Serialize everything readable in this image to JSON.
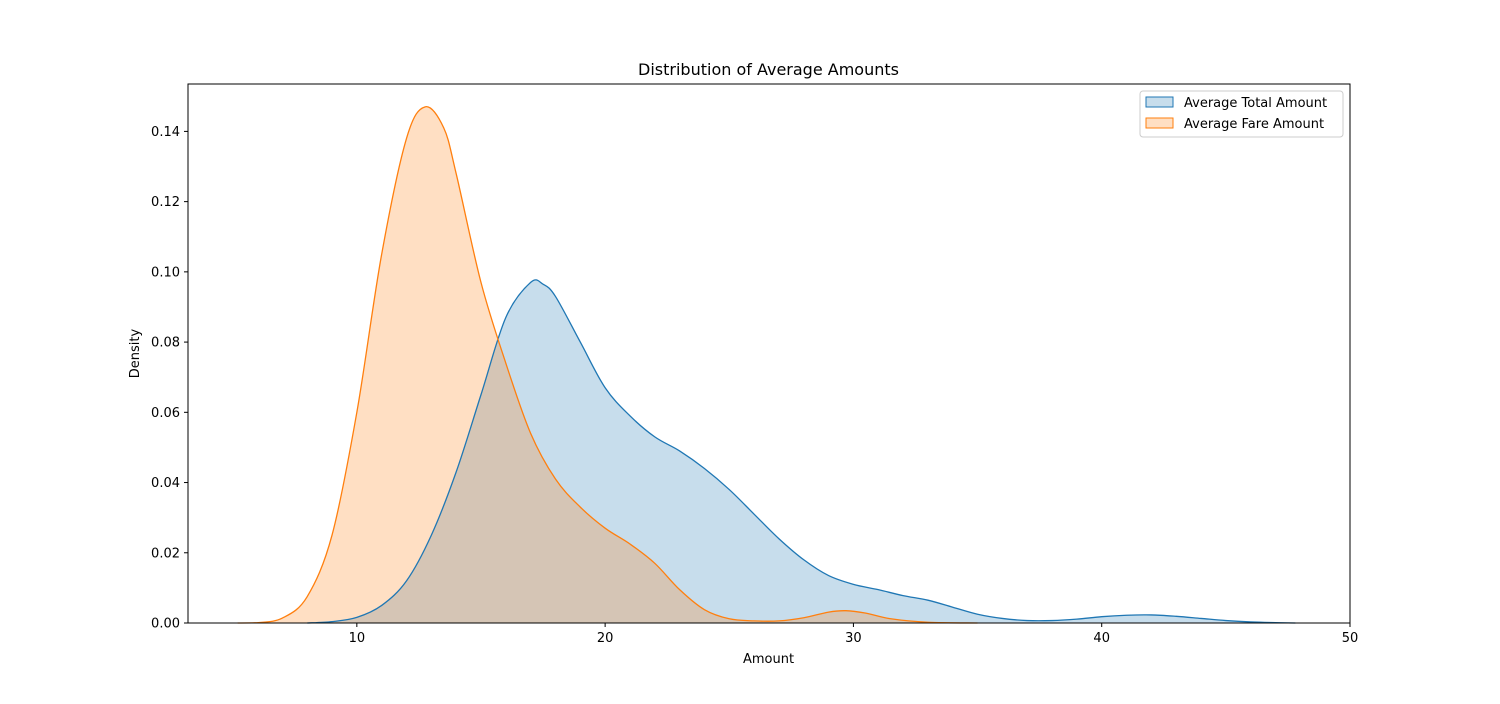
{
  "chart_data": {
    "type": "area",
    "title": "Distribution of Average Amounts",
    "xlabel": "Amount",
    "ylabel": "Density",
    "xlim": [
      3.2,
      50
    ],
    "ylim": [
      0,
      0.1535
    ],
    "x_ticks": [
      10,
      20,
      30,
      40,
      50
    ],
    "y_ticks": [
      0.0,
      0.02,
      0.04,
      0.06,
      0.08,
      0.1,
      0.12,
      0.14
    ],
    "y_tick_format": 2,
    "grid": false,
    "legend_position": "top-right",
    "series": [
      {
        "name": "Average Total Amount",
        "color": "#1f77b4",
        "fill_opacity": 0.25,
        "points": [
          [
            8,
            0.0
          ],
          [
            9,
            0.0004
          ],
          [
            10,
            0.0016
          ],
          [
            11,
            0.005
          ],
          [
            12,
            0.012
          ],
          [
            13,
            0.025
          ],
          [
            14,
            0.043
          ],
          [
            15,
            0.065
          ],
          [
            16,
            0.087
          ],
          [
            17,
            0.097
          ],
          [
            17.5,
            0.0965
          ],
          [
            18,
            0.093
          ],
          [
            19,
            0.08
          ],
          [
            20,
            0.067
          ],
          [
            21,
            0.059
          ],
          [
            22,
            0.053
          ],
          [
            23,
            0.049
          ],
          [
            24,
            0.044
          ],
          [
            25,
            0.038
          ],
          [
            26,
            0.031
          ],
          [
            27,
            0.024
          ],
          [
            28,
            0.018
          ],
          [
            29,
            0.0135
          ],
          [
            30,
            0.011
          ],
          [
            31,
            0.0095
          ],
          [
            32,
            0.0078
          ],
          [
            33,
            0.0065
          ],
          [
            34,
            0.0045
          ],
          [
            35,
            0.0025
          ],
          [
            36,
            0.0013
          ],
          [
            37,
            0.0007
          ],
          [
            38,
            0.0007
          ],
          [
            39,
            0.0011
          ],
          [
            40,
            0.0018
          ],
          [
            41,
            0.0022
          ],
          [
            42,
            0.0023
          ],
          [
            43,
            0.0019
          ],
          [
            44,
            0.0013
          ],
          [
            45,
            0.0007
          ],
          [
            46,
            0.0003
          ],
          [
            47,
            0.0001
          ],
          [
            47.8,
            0.0
          ]
        ]
      },
      {
        "name": "Average Fare Amount",
        "color": "#ff7f0e",
        "fill_opacity": 0.25,
        "points": [
          [
            5.2,
            0.0
          ],
          [
            6,
            0.0001
          ],
          [
            7,
            0.0014
          ],
          [
            8,
            0.0075
          ],
          [
            9,
            0.025
          ],
          [
            10,
            0.06
          ],
          [
            11,
            0.105
          ],
          [
            12,
            0.138
          ],
          [
            12.75,
            0.147
          ],
          [
            13.5,
            0.141
          ],
          [
            14,
            0.128
          ],
          [
            15,
            0.097
          ],
          [
            16,
            0.074
          ],
          [
            17,
            0.054
          ],
          [
            18,
            0.041
          ],
          [
            19,
            0.033
          ],
          [
            20,
            0.027
          ],
          [
            21,
            0.0225
          ],
          [
            22,
            0.017
          ],
          [
            23,
            0.0095
          ],
          [
            24,
            0.0038
          ],
          [
            25,
            0.0012
          ],
          [
            26,
            0.0006
          ],
          [
            27,
            0.0006
          ],
          [
            28,
            0.0015
          ],
          [
            29,
            0.0031
          ],
          [
            29.7,
            0.0035
          ],
          [
            30.5,
            0.0028
          ],
          [
            31.5,
            0.0012
          ],
          [
            33,
            0.0002
          ],
          [
            35,
            0.0
          ]
        ]
      }
    ]
  }
}
